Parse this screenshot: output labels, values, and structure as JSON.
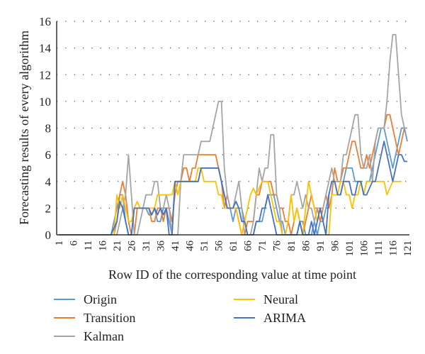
{
  "chart_data": {
    "type": "line",
    "title": "",
    "xlabel": "Row ID of the corresponding value at time point",
    "ylabel": "Forecasting results of every algorithm",
    "ylim": [
      0,
      16
    ],
    "yticks": [
      0,
      2,
      4,
      6,
      8,
      10,
      12,
      14,
      16
    ],
    "xlim": [
      1,
      121
    ],
    "xtick_labels": [
      "1",
      "6",
      "11",
      "16",
      "21",
      "26",
      "31",
      "36",
      "41",
      "46",
      "51",
      "56",
      "61",
      "66",
      "71",
      "76",
      "81",
      "86",
      "91",
      "96",
      "101",
      "106",
      "111",
      "116",
      "121"
    ],
    "grid": "horizontal-dotted",
    "legend_position": "bottom",
    "series": [
      {
        "name": "Origin",
        "color": "#5B9BD5",
        "values": [
          0,
          0,
          0,
          0,
          0,
          0,
          0,
          0,
          0,
          0,
          0,
          0,
          0,
          0,
          0,
          0,
          0,
          0,
          0,
          1,
          2,
          3,
          3,
          1,
          0,
          0,
          2,
          2,
          2,
          2,
          2,
          1.5,
          1.5,
          2,
          1,
          1,
          2,
          2,
          1,
          0,
          4,
          4,
          4,
          4,
          4,
          4,
          4,
          4,
          4,
          5,
          5,
          5,
          5,
          5,
          5,
          5,
          4,
          3,
          2,
          2,
          1,
          2,
          2,
          2,
          1,
          0,
          0,
          0,
          1,
          1,
          1,
          2,
          3,
          3,
          3,
          2,
          1,
          1,
          0,
          0,
          0,
          0,
          0,
          1,
          1,
          0,
          0,
          0,
          1,
          0,
          1,
          1,
          2,
          3,
          4,
          4,
          3,
          3,
          4,
          5,
          5,
          5,
          4,
          4,
          4,
          3,
          4,
          4,
          5,
          6,
          7,
          8,
          8,
          7,
          6,
          5,
          6,
          7,
          8,
          8,
          7
        ]
      },
      {
        "name": "Transition",
        "color": "#ED7D31",
        "values": [
          0,
          0,
          0,
          0,
          0,
          0,
          0,
          0,
          0,
          0,
          0,
          0,
          0,
          0,
          0,
          0,
          0,
          0,
          0,
          0,
          1,
          3,
          4,
          3,
          1,
          0,
          0,
          2,
          2,
          2,
          2,
          2,
          1,
          1,
          2,
          2,
          1,
          2,
          2,
          1,
          3,
          4,
          4,
          5,
          5,
          4,
          5,
          5,
          6,
          6,
          6,
          6,
          6,
          6,
          6,
          5,
          4,
          2,
          3,
          2,
          2,
          2,
          1,
          0,
          0,
          1,
          1,
          1,
          3,
          3,
          4,
          4,
          4,
          4,
          3,
          3,
          2,
          2,
          1,
          1,
          0,
          1,
          2,
          1,
          0,
          1,
          2,
          3,
          2,
          2,
          1,
          2,
          3,
          2,
          3,
          5,
          4,
          4,
          5,
          5,
          6,
          7,
          7,
          6,
          5,
          5,
          6,
          5,
          6,
          7,
          8,
          8,
          8,
          9,
          9,
          8,
          7,
          6,
          7,
          8,
          8
        ]
      },
      {
        "name": "Kalman",
        "color": "#A5A5A5",
        "values": [
          0,
          0,
          0,
          0,
          0,
          0,
          0,
          0,
          0,
          0,
          0,
          0,
          0,
          0,
          0,
          0,
          0,
          0,
          0,
          0,
          0,
          1,
          2,
          3,
          6,
          3,
          0,
          0,
          1,
          2,
          3,
          3,
          3,
          4,
          4,
          2,
          2,
          3,
          2,
          0,
          0,
          0,
          4,
          6,
          6,
          6,
          6,
          6,
          6,
          7,
          7,
          7,
          7,
          8,
          9,
          10,
          10,
          5,
          3,
          2,
          2,
          3,
          4,
          2,
          0,
          0,
          0,
          1,
          3,
          5,
          4,
          5,
          5,
          7.5,
          7.5,
          3,
          2,
          0,
          0,
          1,
          3,
          3,
          4,
          3,
          2,
          3,
          2,
          2,
          1,
          2,
          2,
          2,
          3,
          4,
          5,
          4,
          4,
          4,
          6,
          6,
          7,
          8,
          9,
          9,
          6,
          5,
          5,
          6,
          4,
          7,
          8,
          8,
          8,
          10,
          13,
          15,
          15,
          12,
          9,
          8,
          8
        ]
      },
      {
        "name": "Neural",
        "color": "#FFC000",
        "values": [
          0,
          0,
          0,
          0,
          0,
          0,
          0,
          0,
          0,
          0,
          0,
          0,
          0,
          0,
          0,
          0,
          0,
          0,
          0,
          0,
          3,
          2,
          3,
          2,
          1,
          1,
          2,
          2.5,
          2,
          2,
          2,
          2,
          2,
          2,
          3,
          3,
          3,
          3,
          3,
          3,
          4,
          3,
          4,
          4,
          4,
          4,
          4,
          4,
          5,
          5,
          4,
          4,
          4,
          4,
          4,
          3,
          3,
          2,
          2,
          2,
          2,
          2,
          1,
          0,
          1,
          2,
          3,
          3.5,
          3,
          3.5,
          4,
          4,
          4,
          3,
          2,
          1,
          1,
          0,
          0,
          1,
          3,
          1,
          2,
          1,
          0,
          2,
          4,
          3,
          2,
          1,
          2,
          1,
          0,
          0,
          3,
          3,
          3,
          4,
          4,
          3,
          3,
          2,
          3,
          3,
          4,
          3,
          4,
          4,
          4,
          4,
          4,
          4,
          4,
          3,
          3.5,
          4,
          4,
          4,
          4
        ]
      },
      {
        "name": "ARIMA",
        "color": "#4472C4",
        "values": [
          0,
          0,
          0,
          0,
          0,
          0,
          0,
          0,
          0,
          0,
          0,
          0,
          0,
          0,
          0,
          0,
          0,
          0,
          0,
          0.5,
          1,
          2.5,
          2,
          1,
          0,
          0,
          2,
          2,
          2,
          2,
          2,
          2,
          1.5,
          2,
          1.5,
          2,
          1.5,
          2,
          0,
          0,
          4,
          4,
          4,
          4,
          4,
          4,
          4,
          4,
          4,
          5,
          5,
          5,
          5,
          5,
          5,
          5,
          4,
          3,
          2,
          2,
          2,
          2.5,
          2,
          1,
          1,
          0,
          0,
          0,
          1,
          1,
          2,
          2,
          3,
          2,
          1,
          0,
          0,
          0,
          0,
          0,
          0,
          0,
          0,
          1,
          0,
          0,
          0,
          1,
          0,
          1,
          2,
          1,
          0,
          3,
          4,
          4,
          3,
          3,
          4,
          4,
          4,
          3,
          3,
          4,
          4,
          3,
          3,
          3.5,
          4,
          4,
          5,
          6,
          7,
          6,
          5,
          4,
          5,
          6,
          6,
          5.5,
          5.5
        ]
      }
    ]
  },
  "legend": {
    "items": [
      {
        "label": "Origin",
        "color": "#5B9BD5"
      },
      {
        "label": "Transition",
        "color": "#ED7D31"
      },
      {
        "label": "Kalman",
        "color": "#A5A5A5"
      },
      {
        "label": "Neural",
        "color": "#FFC000"
      },
      {
        "label": "ARIMA",
        "color": "#4472C4"
      }
    ]
  }
}
